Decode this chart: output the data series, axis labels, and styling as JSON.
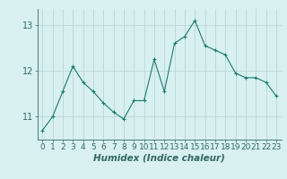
{
  "x": [
    0,
    1,
    2,
    3,
    4,
    5,
    6,
    7,
    8,
    9,
    10,
    11,
    12,
    13,
    14,
    15,
    16,
    17,
    18,
    19,
    20,
    21,
    22,
    23
  ],
  "y": [
    10.7,
    11.0,
    11.55,
    12.1,
    11.75,
    11.55,
    11.3,
    11.1,
    10.95,
    11.35,
    11.35,
    12.25,
    11.55,
    12.6,
    12.75,
    13.1,
    12.55,
    12.45,
    12.35,
    11.95,
    11.85,
    11.85,
    11.75,
    11.45
  ],
  "line_color": "#1a7a6e",
  "marker": "+",
  "marker_size": 3,
  "marker_lw": 0.8,
  "line_width": 0.8,
  "bg_color": "#d8f0f0",
  "grid_color": "#b8d8d8",
  "xlabel": "Humidex (Indice chaleur)",
  "xlim": [
    -0.5,
    23.5
  ],
  "ylim": [
    10.5,
    13.35
  ],
  "yticks": [
    11,
    12,
    13
  ],
  "xticks": [
    0,
    1,
    2,
    3,
    4,
    5,
    6,
    7,
    8,
    9,
    10,
    11,
    12,
    13,
    14,
    15,
    16,
    17,
    18,
    19,
    20,
    21,
    22,
    23
  ],
  "tick_fontsize": 6.5,
  "xlabel_fontsize": 7.5,
  "spine_color": "#336666"
}
